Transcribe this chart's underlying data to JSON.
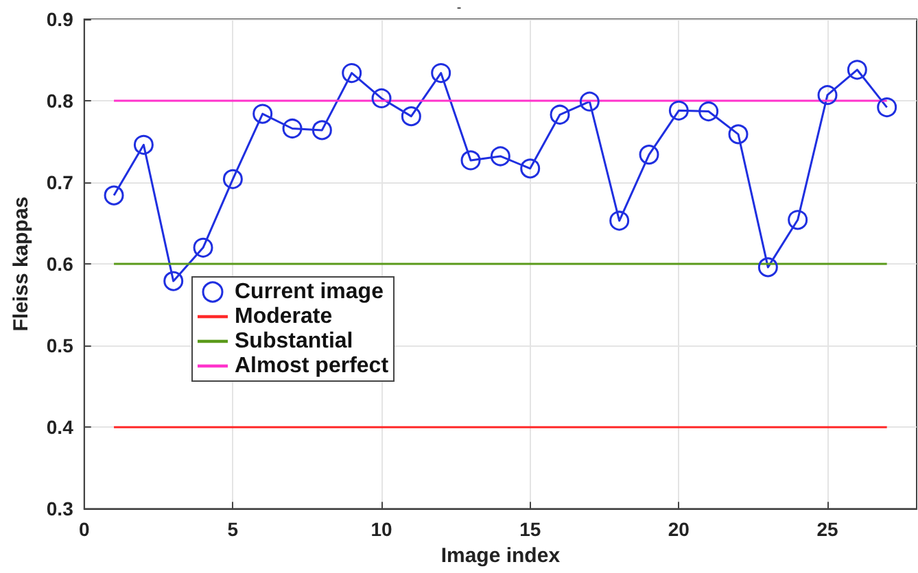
{
  "chart_data": {
    "type": "line",
    "title": "-",
    "xlabel": "Image index",
    "ylabel": "Fleiss kappas",
    "x": [
      1,
      2,
      3,
      4,
      5,
      6,
      7,
      8,
      9,
      10,
      11,
      12,
      13,
      14,
      15,
      16,
      17,
      18,
      19,
      20,
      21,
      22,
      23,
      24,
      25,
      26,
      27
    ],
    "series": [
      {
        "name": "Current image",
        "color": "#1f2fe0",
        "marker": "circle",
        "values": [
          0.684,
          0.746,
          0.579,
          0.62,
          0.704,
          0.784,
          0.766,
          0.764,
          0.834,
          0.803,
          0.781,
          0.834,
          0.727,
          0.732,
          0.717,
          0.783,
          0.799,
          0.653,
          0.734,
          0.788,
          0.787,
          0.759,
          0.596,
          0.654,
          0.807,
          0.838,
          0.792
        ]
      },
      {
        "name": "Moderate",
        "color": "#ff2a2a",
        "marker": "none",
        "values": [
          0.4,
          0.4,
          0.4,
          0.4,
          0.4,
          0.4,
          0.4,
          0.4,
          0.4,
          0.4,
          0.4,
          0.4,
          0.4,
          0.4,
          0.4,
          0.4,
          0.4,
          0.4,
          0.4,
          0.4,
          0.4,
          0.4,
          0.4,
          0.4,
          0.4,
          0.4,
          0.4
        ]
      },
      {
        "name": "Substantial",
        "color": "#5a9a1a",
        "marker": "none",
        "values": [
          0.6,
          0.6,
          0.6,
          0.6,
          0.6,
          0.6,
          0.6,
          0.6,
          0.6,
          0.6,
          0.6,
          0.6,
          0.6,
          0.6,
          0.6,
          0.6,
          0.6,
          0.6,
          0.6,
          0.6,
          0.6,
          0.6,
          0.6,
          0.6,
          0.6,
          0.6,
          0.6
        ]
      },
      {
        "name": "Almost perfect",
        "color": "#ff33cc",
        "marker": "none",
        "values": [
          0.8,
          0.8,
          0.8,
          0.8,
          0.8,
          0.8,
          0.8,
          0.8,
          0.8,
          0.8,
          0.8,
          0.8,
          0.8,
          0.8,
          0.8,
          0.8,
          0.8,
          0.8,
          0.8,
          0.8,
          0.8,
          0.8,
          0.8,
          0.8,
          0.8,
          0.8,
          0.8
        ]
      }
    ],
    "xlim": [
      0,
      28
    ],
    "xticks": [
      0,
      5,
      10,
      15,
      20,
      25
    ],
    "ylim": [
      0.3,
      0.9
    ],
    "yticks": [
      0.3,
      0.4,
      0.5,
      0.6,
      0.7,
      0.8,
      0.9
    ],
    "grid": true,
    "legend": "center left",
    "line_style": "solid"
  }
}
